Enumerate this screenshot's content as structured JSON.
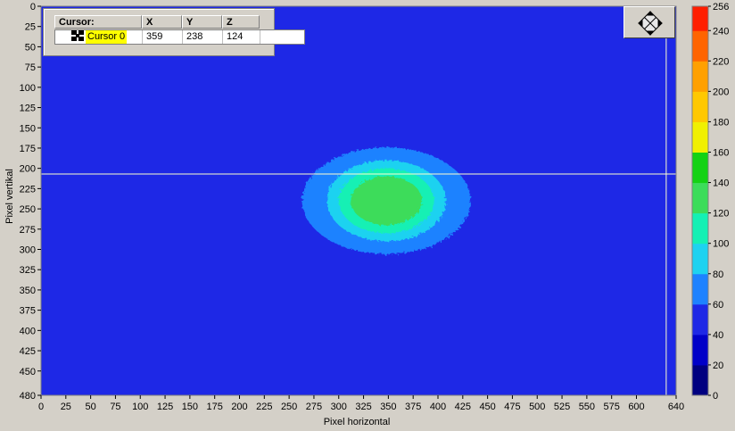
{
  "chart_data": {
    "type": "heatmap",
    "title": "",
    "xlabel": "Pixel horizontal",
    "ylabel": "Pixel vertikal",
    "xlim": [
      0,
      640
    ],
    "ylim": [
      0,
      480
    ],
    "y_inverted": true,
    "x_ticks": [
      "0",
      "25",
      "50",
      "75",
      "100",
      "125",
      "150",
      "175",
      "200",
      "225",
      "250",
      "275",
      "300",
      "325",
      "350",
      "375",
      "400",
      "425",
      "450",
      "475",
      "500",
      "525",
      "550",
      "575",
      "600",
      "640"
    ],
    "x_tick_values": [
      0,
      25,
      50,
      75,
      100,
      125,
      150,
      175,
      200,
      225,
      250,
      275,
      300,
      325,
      350,
      375,
      400,
      425,
      450,
      475,
      500,
      525,
      550,
      575,
      600,
      640
    ],
    "y_ticks": [
      "0",
      "25",
      "50",
      "75",
      "100",
      "125",
      "150",
      "175",
      "200",
      "225",
      "250",
      "275",
      "300",
      "325",
      "350",
      "375",
      "400",
      "425",
      "450",
      "480"
    ],
    "y_tick_values": [
      0,
      25,
      50,
      75,
      100,
      125,
      150,
      175,
      200,
      225,
      250,
      275,
      300,
      325,
      350,
      375,
      400,
      425,
      450,
      480
    ],
    "background_level": 48,
    "blob": {
      "center_x": 348,
      "center_y": 240,
      "levels": [
        {
          "value": 68,
          "rx": 85,
          "ry": 66
        },
        {
          "value": 88,
          "rx": 60,
          "ry": 50
        },
        {
          "value": 108,
          "rx": 48,
          "ry": 40
        },
        {
          "value": 128,
          "rx": 36,
          "ry": 30
        }
      ]
    },
    "crosshair": {
      "x": 630,
      "y": 207
    },
    "colorbar": {
      "ticks": [
        "0",
        "20",
        "40",
        "60",
        "80",
        "100",
        "120",
        "140",
        "160",
        "180",
        "200",
        "220",
        "240",
        "256"
      ],
      "tick_values": [
        0,
        20,
        40,
        60,
        80,
        100,
        120,
        140,
        160,
        180,
        200,
        220,
        240,
        256
      ],
      "bands": [
        {
          "from": 0,
          "to": 20,
          "color": "#000080"
        },
        {
          "from": 20,
          "to": 40,
          "color": "#0000c8"
        },
        {
          "from": 40,
          "to": 60,
          "color": "#1e28e6"
        },
        {
          "from": 60,
          "to": 80,
          "color": "#1e82ff"
        },
        {
          "from": 80,
          "to": 100,
          "color": "#1ed2f0"
        },
        {
          "from": 100,
          "to": 120,
          "color": "#14f0b4"
        },
        {
          "from": 120,
          "to": 140,
          "color": "#3cdc5a"
        },
        {
          "from": 140,
          "to": 160,
          "color": "#14d214"
        },
        {
          "from": 160,
          "to": 180,
          "color": "#f0f000"
        },
        {
          "from": 180,
          "to": 200,
          "color": "#ffc800"
        },
        {
          "from": 200,
          "to": 220,
          "color": "#ffa000"
        },
        {
          "from": 220,
          "to": 240,
          "color": "#ff6400"
        },
        {
          "from": 240,
          "to": 256,
          "color": "#ff1e00"
        }
      ]
    }
  },
  "cursor_table": {
    "headers": {
      "name": "Cursor:",
      "x": "X",
      "y": "Y",
      "z": "Z"
    },
    "row": {
      "name": "Cursor 0",
      "x": "359",
      "y": "238",
      "z": "124"
    }
  },
  "colors": {
    "plot_background": "#1e28e6",
    "crosshair": "#ffffcc",
    "cursor_highlight": "#ffff00"
  },
  "icons": {
    "navigation": "pan-zoom-icon",
    "cursor_marker": "crosshair-marker-icon"
  }
}
